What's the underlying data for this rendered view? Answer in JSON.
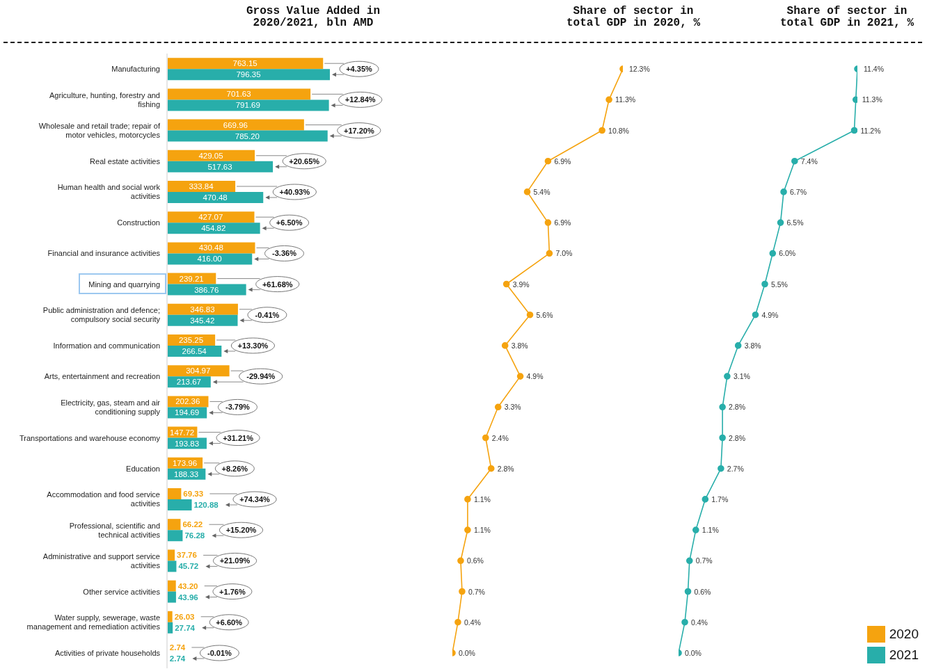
{
  "chart_data": [
    {
      "type": "bar",
      "orientation": "horizontal",
      "title": "Gross Value Added in 2020/2021, bln AMD",
      "categories": [
        "Manufacturing",
        "Agriculture, hunting, forestry and fishing",
        "Wholesale and retail trade; repair of motor vehicles, motorcycles",
        "Real estate activities",
        "Human health and social work activities",
        "Construction",
        "Financial and insurance activities",
        "Mining and quarrying",
        "Public administration and defence; compulsory social security",
        "Information and communication",
        "Arts, entertainment and recreation",
        "Electricity, gas, steam and air conditioning supply",
        "Transportations and warehouse economy",
        "Education",
        "Accommodation and food service activities",
        "Professional, scientific and technical activities",
        "Administrative and support service activities",
        "Other service activities",
        "Water supply, sewerage, waste management and remediation activities",
        "Activities of private households"
      ],
      "series": [
        {
          "name": "2020",
          "color": "#f5a30f",
          "values": [
            763.15,
            701.63,
            669.96,
            429.05,
            333.84,
            427.07,
            430.48,
            239.21,
            346.83,
            235.25,
            304.97,
            202.36,
            147.72,
            173.96,
            69.33,
            66.22,
            37.76,
            43.2,
            26.03,
            2.74
          ],
          "value_labels": [
            "763.15",
            "701.63",
            "669.96",
            "429.05",
            "333.84",
            "427.07",
            "430.48",
            "239.21",
            "346.83",
            "235.25",
            "304.97",
            "202.36",
            "147.72",
            "173.96",
            "69.33",
            "66.22",
            "37.76",
            "43.20",
            "26.03",
            "2.74"
          ]
        },
        {
          "name": "2021",
          "color": "#28aeaa",
          "values": [
            796.35,
            791.69,
            785.2,
            517.63,
            470.48,
            454.82,
            416.0,
            386.76,
            345.42,
            266.54,
            213.67,
            194.69,
            193.83,
            188.33,
            120.88,
            76.28,
            45.72,
            43.96,
            27.74,
            2.74
          ],
          "value_labels": [
            "796.35",
            "791.69",
            "785.20",
            "517.63",
            "470.48",
            "454.82",
            "416.00",
            "386.76",
            "345.42",
            "266.54",
            "213.67",
            "194.69",
            "193.83",
            "188.33",
            "120.88",
            "76.28",
            "45.72",
            "43.96",
            "27.74",
            "2.74"
          ]
        }
      ],
      "tick_labels": "y",
      "legend": "bottom right",
      "annotations": [
        "+4.35%",
        "+12.84%",
        "+17.20%",
        "+20.65%",
        "+40.93%",
        "+6.50%",
        "-3.36%",
        "+61.68%",
        "-0.41%",
        "+13.30%",
        "-29.94%",
        "-3.79%",
        "+31.21%",
        "+8.26%",
        "+74.34%",
        "+15.20%",
        "+21.09%",
        "+1.76%",
        "+6.60%",
        "-0.01%"
      ]
    },
    {
      "type": "line",
      "orientation": "horizontal",
      "title": "Share of sector in total GDP in 2020, %",
      "categories": [
        null,
        null,
        null,
        null,
        null,
        null,
        null,
        null,
        null,
        null,
        null,
        null,
        null,
        null,
        null,
        null,
        null,
        null,
        null,
        null
      ],
      "series": [
        {
          "color": "#f5a30f",
          "values": [
            12.3,
            11.3,
            10.8,
            6.9,
            5.4,
            6.9,
            7.0,
            3.9,
            5.6,
            3.8,
            4.9,
            3.3,
            2.4,
            2.8,
            1.1,
            1.1,
            0.6,
            0.7,
            0.4,
            0.0
          ],
          "value_labels": [
            "12.3%",
            "11.3%",
            "10.8%",
            "6.9%",
            "5.4%",
            "6.9%",
            "7.0%",
            "3.9%",
            "5.6%",
            "3.8%",
            "4.9%",
            "3.3%",
            "2.4%",
            "2.8%",
            "1.1%",
            "1.1%",
            "0.6%",
            "0.7%",
            "0.4%",
            "0.0%"
          ]
        }
      ],
      "tick_labels": false,
      "marker": "circle"
    },
    {
      "type": "line",
      "orientation": "horizontal",
      "title": "Share of sector in total GDP in 2021, %",
      "categories": [
        null,
        null,
        null,
        null,
        null,
        null,
        null,
        null,
        null,
        null,
        null,
        null,
        null,
        null,
        null,
        null,
        null,
        null,
        null,
        null
      ],
      "series": [
        {
          "color": "#28aeaa",
          "values": [
            11.4,
            11.3,
            11.2,
            7.4,
            6.7,
            6.5,
            6.0,
            5.5,
            4.9,
            3.8,
            3.1,
            2.8,
            2.8,
            2.7,
            1.7,
            1.1,
            0.7,
            0.6,
            0.4,
            0.0
          ],
          "value_labels": [
            "11.4%",
            "11.3%",
            "11.2%",
            "7.4%",
            "6.7%",
            "6.5%",
            "6.0%",
            "5.5%",
            "4.9%",
            "3.8%",
            "3.1%",
            "2.8%",
            "2.8%",
            "2.7%",
            "1.7%",
            "1.1%",
            "0.7%",
            "0.6%",
            "0.4%",
            "0.0%"
          ]
        }
      ],
      "tick_labels": false,
      "marker": "circle"
    }
  ]
}
